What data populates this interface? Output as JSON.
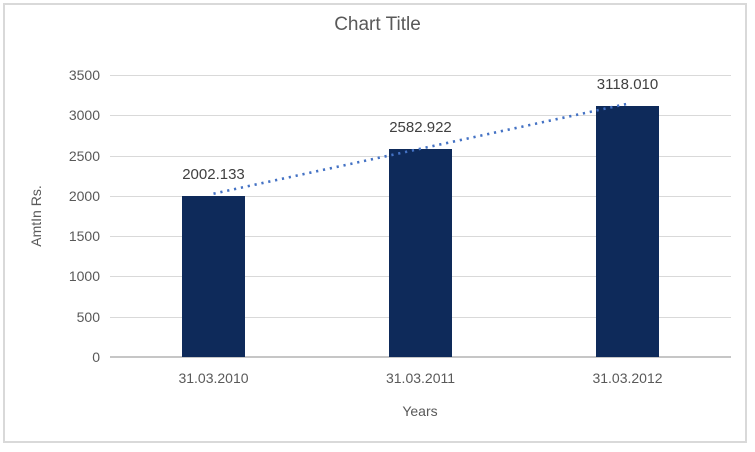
{
  "window": {
    "background": "#ffffff",
    "frame_border_color": "#d9d9d9"
  },
  "chart_data": {
    "type": "bar",
    "title": "Chart Title",
    "xlabel": "Years",
    "ylabel": "AmtIn Rs.",
    "categories": [
      "31.03.2010",
      "31.03.2011",
      "31.03.2012"
    ],
    "values": [
      2002.133,
      2582.922,
      3118.01
    ],
    "data_labels": [
      "2002.133",
      "2582.922",
      "3118.010"
    ],
    "ylim": [
      0,
      3500
    ],
    "ytick_interval": 500,
    "yticks": [
      0,
      500,
      1000,
      1500,
      2000,
      2500,
      3000,
      3500
    ],
    "grid": true,
    "legend": "none",
    "trendline": {
      "type": "linear",
      "style": "dotted",
      "color": "#4472c4"
    },
    "colors": {
      "bar": "#0e2a5a",
      "trendline": "#4472c4",
      "gridline": "#d9d9d9",
      "axis_line": "#c6c6c6",
      "title_text": "#595959",
      "tick_text": "#595959",
      "data_label_text": "#404040"
    }
  }
}
